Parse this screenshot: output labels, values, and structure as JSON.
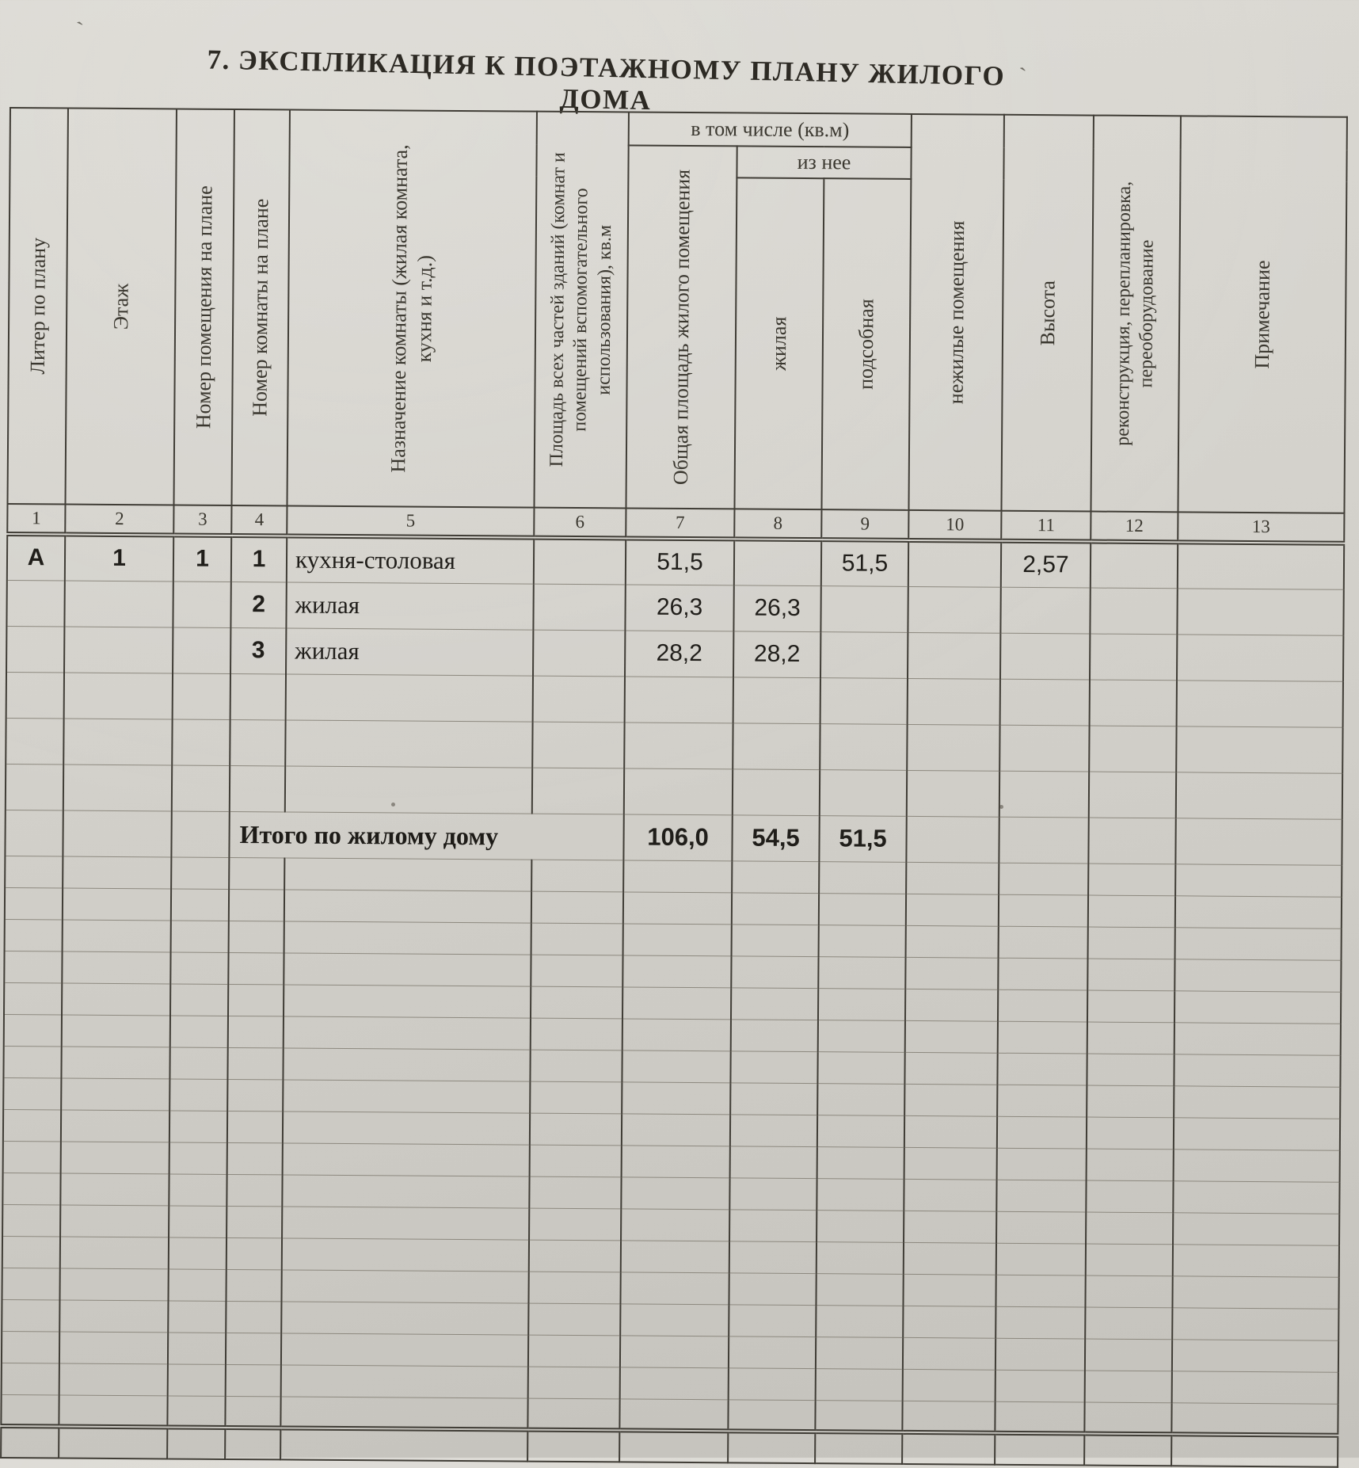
{
  "page": {
    "title": "7. ЭКСПЛИКАЦИЯ К ПОЭТАЖНОМУ ПЛАНУ ЖИЛОГО ДОМА"
  },
  "table": {
    "bands": {
      "including": "в том числе (кв.м)",
      "of_it": "из нее"
    },
    "columns": [
      {
        "num": "1",
        "label": "Литер по плану"
      },
      {
        "num": "2",
        "label": "Этаж"
      },
      {
        "num": "3",
        "label": "Номер помещения на плане"
      },
      {
        "num": "4",
        "label": "Номер комнаты на плане"
      },
      {
        "num": "5",
        "label": "Назначение комнаты (жилая комната, кухня и т.д.)"
      },
      {
        "num": "6",
        "label": "Площадь всех частей зданий (комнат и помещений вспомогательного использования), кв.м"
      },
      {
        "num": "7",
        "label": "Общая площадь  жилого помещения"
      },
      {
        "num": "8",
        "label": "жилая"
      },
      {
        "num": "9",
        "label": "подсобная"
      },
      {
        "num": "10",
        "label": "нежилые помещения"
      },
      {
        "num": "11",
        "label": "Высота"
      },
      {
        "num": "12",
        "label": "реконструкция, перепланировка, переоборудование"
      },
      {
        "num": "13",
        "label": "Примечание"
      }
    ],
    "rows": [
      {
        "cells": [
          "А",
          "1",
          "1",
          "1",
          "кухня-столовая",
          "",
          "51,5",
          "",
          "51,5",
          "",
          "2,57",
          "",
          ""
        ]
      },
      {
        "cells": [
          "",
          "",
          "",
          "2",
          "жилая",
          "",
          "26,3",
          "26,3",
          "",
          "",
          "",
          "",
          ""
        ]
      },
      {
        "cells": [
          "",
          "",
          "",
          "3",
          "жилая",
          "",
          "28,2",
          "28,2",
          "",
          "",
          "",
          "",
          ""
        ]
      }
    ],
    "total_row": {
      "label": "Итого по жилому дому",
      "cells7to9": [
        "106,0",
        "54,5",
        "51,5"
      ]
    }
  }
}
